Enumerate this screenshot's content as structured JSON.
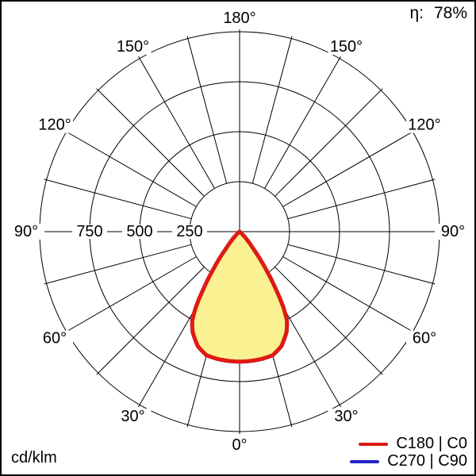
{
  "header": {
    "efficiency_label": "η:",
    "efficiency_value": "78%"
  },
  "footer": {
    "unit_label": "cd/klm"
  },
  "legend": [
    {
      "label": "C180 | C0",
      "color": "#df1b12"
    },
    {
      "label": "C270 | C90",
      "color": "#2222cc"
    }
  ],
  "colors": {
    "grid": "#000000",
    "curve_fill": "#f9f192",
    "c0_stroke": "#df1b12",
    "c90_stroke": "#2222cc"
  },
  "chart_data": {
    "type": "polar",
    "subtype": "photometric-intensity-distribution",
    "unit": "cd/klm",
    "efficiency": "78%",
    "orientation": "0° at bottom (nadir), 180° at top",
    "grid": {
      "spoke_step_deg": 15,
      "labeled_angle_step_deg": 30
    },
    "radial_ticks": [
      250,
      500,
      750
    ],
    "radial_max": 1000,
    "angle_labels": [
      {
        "deg": -150,
        "text": "150°"
      },
      {
        "deg": -120,
        "text": "120°"
      },
      {
        "deg": -90,
        "text": "90°"
      },
      {
        "deg": -60,
        "text": "60°"
      },
      {
        "deg": -30,
        "text": "30°"
      },
      {
        "deg": 0,
        "text": "0°"
      },
      {
        "deg": 30,
        "text": "30°"
      },
      {
        "deg": 60,
        "text": "60°"
      },
      {
        "deg": 90,
        "text": "90°"
      },
      {
        "deg": 120,
        "text": "120°"
      },
      {
        "deg": 150,
        "text": "150°"
      },
      {
        "deg": 180,
        "text": "180°"
      }
    ],
    "radial_labels": [
      {
        "value": 750,
        "text": "750"
      },
      {
        "value": 500,
        "text": "500"
      },
      {
        "value": 250,
        "text": "250"
      }
    ],
    "series": [
      {
        "name": "C180 | C0",
        "color": "#df1b12",
        "fill": "#f9f192",
        "symmetric": true,
        "gamma_deg": [
          0,
          5,
          10,
          15,
          20,
          25,
          28,
          30,
          32,
          35,
          38,
          40,
          45,
          50
        ],
        "intensity_cd_per_klm": [
          650,
          649,
          646,
          640,
          610,
          555,
          505,
          440,
          350,
          230,
          130,
          85,
          25,
          0
        ]
      },
      {
        "name": "C270 | C90",
        "color": "#2222cc",
        "fill": "none",
        "symmetric": true,
        "gamma_deg": [
          0,
          5,
          10,
          15,
          20,
          25,
          28,
          30,
          32,
          35,
          38,
          40,
          45,
          50
        ],
        "intensity_cd_per_klm": [
          650,
          649,
          646,
          640,
          610,
          555,
          505,
          440,
          350,
          230,
          130,
          85,
          25,
          0
        ]
      }
    ]
  }
}
